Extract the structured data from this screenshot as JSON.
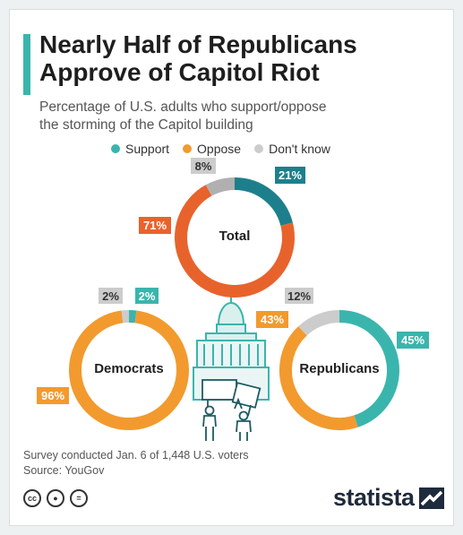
{
  "title_line1": "Nearly Half of Republicans",
  "title_line2": "Approve of Capitol Riot",
  "subtitle_line1": "Percentage of U.S. adults who support/oppose",
  "subtitle_line2": "the storming of the Capitol building",
  "legend": [
    {
      "label": "Support",
      "color": "#3ab5ad"
    },
    {
      "label": "Oppose",
      "color": "#f29a2e"
    },
    {
      "label": "Don't know",
      "color": "#cccccc"
    }
  ],
  "footer_line1": "Survey conducted Jan. 6 of 1,448 U.S. voters",
  "footer_line2": "Source: YouGov",
  "brand": "statista",
  "icons": [
    "creative-commons-icon",
    "attribution-icon",
    "no-derivatives-icon",
    "statista-logo-icon",
    "capitol-building-icon",
    "protester-icon"
  ],
  "chart_data": [
    {
      "type": "pie",
      "variant": "donut",
      "center_label": "Total",
      "categories": [
        "Support",
        "Oppose",
        "Don't know"
      ],
      "values": [
        21,
        71,
        8
      ],
      "labels": [
        "21%",
        "71%",
        "8%"
      ],
      "colors": [
        "#1e7f8c",
        "#e8632c",
        "#b0b0b0"
      ]
    },
    {
      "type": "pie",
      "variant": "donut",
      "center_label": "Democrats",
      "categories": [
        "Support",
        "Oppose",
        "Don't know"
      ],
      "values": [
        2,
        96,
        2
      ],
      "labels": [
        "2%",
        "96%",
        "2%"
      ],
      "colors": [
        "#3ab5ad",
        "#f29a2e",
        "#cccccc"
      ]
    },
    {
      "type": "pie",
      "variant": "donut",
      "center_label": "Republicans",
      "categories": [
        "Support",
        "Oppose",
        "Don't know"
      ],
      "values": [
        45,
        43,
        12
      ],
      "labels": [
        "45%",
        "43%",
        "12%"
      ],
      "colors": [
        "#3ab5ad",
        "#f29a2e",
        "#cccccc"
      ]
    }
  ]
}
